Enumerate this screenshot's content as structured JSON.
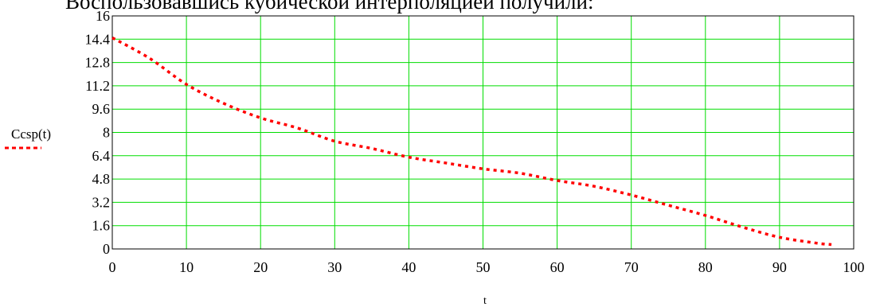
{
  "caption": "Воспользовавшись кубической интерполяцией получили:",
  "chart_data": {
    "type": "line",
    "title": "",
    "xlabel": "t",
    "ylabel": "",
    "xlim": [
      0,
      100
    ],
    "ylim": [
      0,
      16
    ],
    "x_ticks": [
      "0",
      "10",
      "20",
      "30",
      "40",
      "50",
      "60",
      "70",
      "80",
      "90",
      "100"
    ],
    "y_ticks": [
      "0",
      "1.6",
      "3.2",
      "4.8",
      "6.4",
      "8",
      "9.6",
      "11.2",
      "12.8",
      "14.4",
      "16"
    ],
    "grid": true,
    "legend": "left",
    "series": [
      {
        "name": "Ccsp(t)",
        "color": "#ff0000",
        "dash": "dotted",
        "x": [
          0,
          5,
          10,
          15,
          20,
          25,
          30,
          35,
          40,
          45,
          50,
          55,
          60,
          65,
          70,
          75,
          80,
          85,
          90,
          95,
          97
        ],
        "values": [
          14.5,
          13.1,
          11.3,
          10.0,
          9.0,
          8.3,
          7.4,
          6.9,
          6.3,
          5.9,
          5.5,
          5.2,
          4.7,
          4.3,
          3.7,
          3.0,
          2.3,
          1.5,
          0.8,
          0.4,
          0.3
        ]
      }
    ]
  }
}
